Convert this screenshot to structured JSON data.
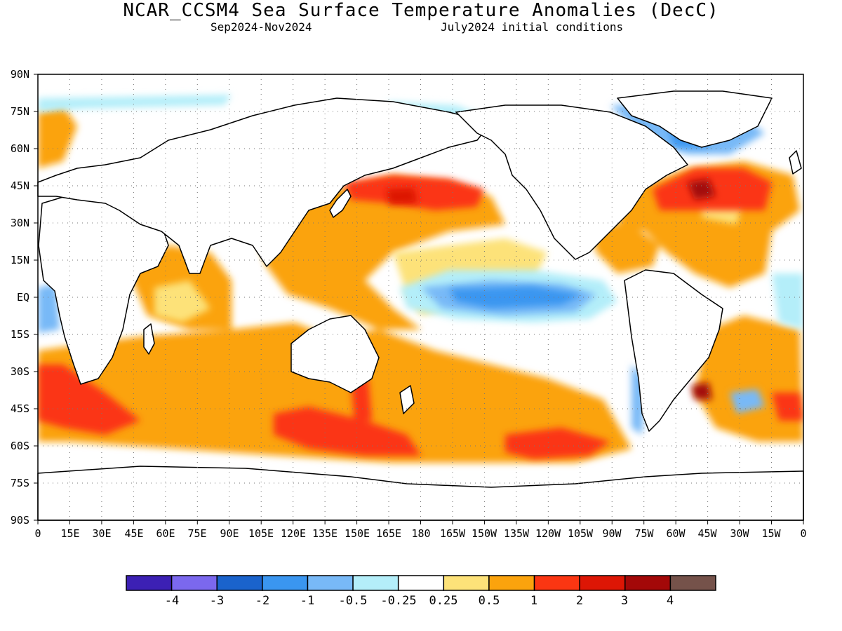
{
  "title": "NCAR_CCSM4 Sea Surface Temperature Anomalies (DecC)",
  "subtitle_left": "Sep2024-Nov2024",
  "subtitle_right": "July2024 initial conditions",
  "lat_labels": [
    "90N",
    "75N",
    "60N",
    "45N",
    "30N",
    "15N",
    "EQ",
    "15S",
    "30S",
    "45S",
    "60S",
    "75S",
    "90S"
  ],
  "lon_labels": [
    "0",
    "15E",
    "30E",
    "45E",
    "60E",
    "75E",
    "90E",
    "105E",
    "120E",
    "135E",
    "150E",
    "165E",
    "180",
    "165W",
    "150W",
    "135W",
    "120W",
    "105W",
    "90W",
    "75W",
    "60W",
    "45W",
    "30W",
    "15W",
    "0"
  ],
  "colorbar": {
    "colors": [
      "#3c20b4",
      "#7b68ee",
      "#1a63cc",
      "#3a96f0",
      "#78b9f7",
      "#b4eef9",
      "#ffffff",
      "#fde279",
      "#fba30d",
      "#fb3612",
      "#dd1605",
      "#a30808",
      "#75524a"
    ],
    "labels": [
      "-4",
      "-3",
      "-2",
      "-1",
      "-0.5",
      "-0.25",
      "0.25",
      "0.5",
      "1",
      "2",
      "3",
      "4"
    ]
  },
  "colors": {
    "land_outline": "#000000",
    "ocean_background": "#ffffff"
  }
}
